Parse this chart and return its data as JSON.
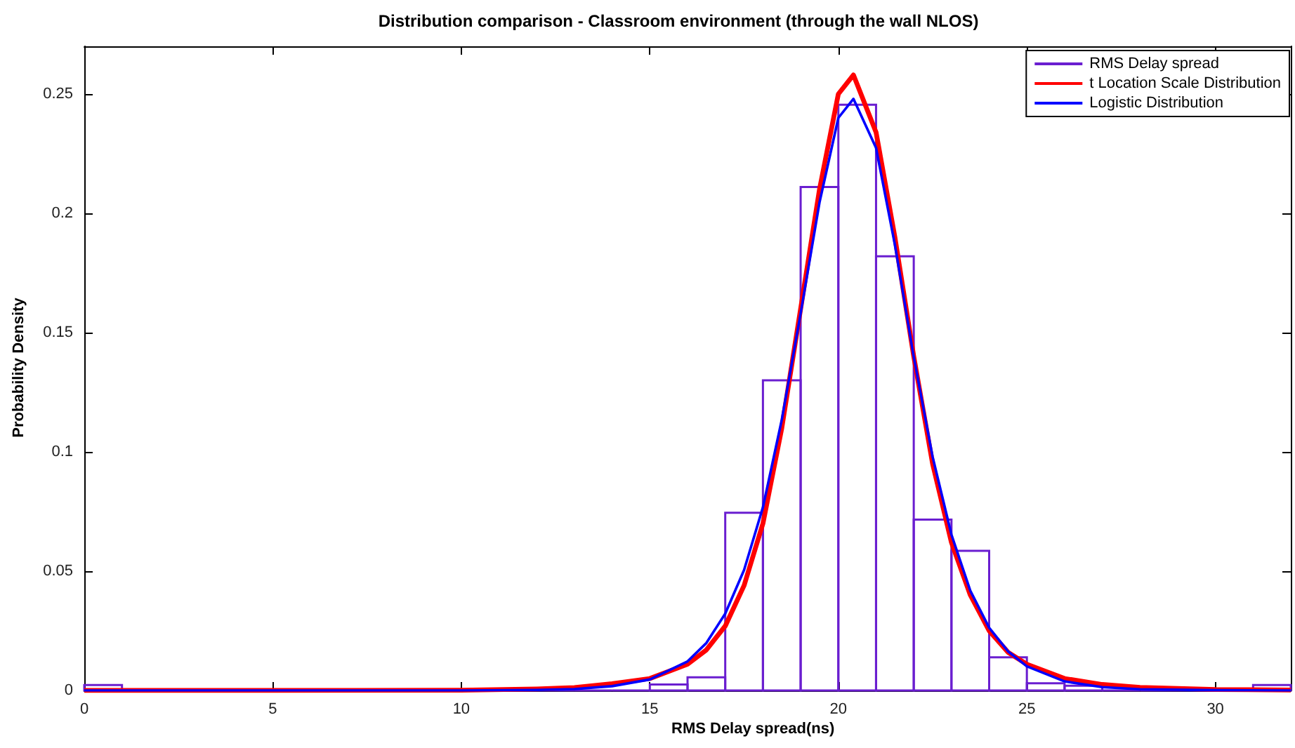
{
  "chart_data": {
    "type": "histogram",
    "title": "Distribution comparison - Classroom environment (through the wall NLOS)",
    "xlabel": "RMS Delay spread(ns)",
    "ylabel": "Probability Density",
    "xlim": [
      0,
      32
    ],
    "ylim": [
      0,
      0.27
    ],
    "xticks": [
      0,
      5,
      10,
      15,
      20,
      25,
      30
    ],
    "yticks": [
      0,
      0.05,
      0.1,
      0.15,
      0.2,
      0.25
    ],
    "grid": false,
    "legend": "top right",
    "series": [
      {
        "name": "RMS Delay spread",
        "type": "histogram",
        "color": "#6a1ed0",
        "bins": [
          0,
          1,
          2,
          3,
          4,
          5,
          6,
          7,
          8,
          9,
          10,
          11,
          12,
          13,
          14,
          15,
          16,
          17,
          18,
          19,
          20,
          21,
          22,
          23,
          24,
          25,
          26,
          27,
          28,
          29,
          30,
          31,
          32
        ],
        "values": [
          0.0023,
          0,
          0,
          0,
          0,
          0,
          0,
          0,
          0,
          0,
          0,
          0,
          0,
          0,
          0,
          0.0025,
          0.0055,
          0.0745,
          0.13,
          0.211,
          0.2455,
          0.182,
          0.0716,
          0.0585,
          0.0139,
          0.003,
          0.002,
          0,
          0,
          0,
          0,
          0.0023
        ]
      },
      {
        "name": "t Location Scale Distribution",
        "type": "line",
        "color": "#ff0000",
        "x": [
          0,
          5,
          10,
          12,
          13,
          14,
          15,
          16,
          16.5,
          17,
          17.5,
          18,
          18.5,
          19,
          19.5,
          20,
          20.4,
          21,
          21.5,
          22,
          22.5,
          23,
          23.5,
          24,
          24.5,
          25,
          26,
          27,
          28,
          30,
          32
        ],
        "values": [
          0,
          0,
          0.0001,
          0.0006,
          0.0012,
          0.0028,
          0.005,
          0.011,
          0.017,
          0.027,
          0.044,
          0.07,
          0.11,
          0.16,
          0.21,
          0.25,
          0.258,
          0.234,
          0.19,
          0.14,
          0.095,
          0.062,
          0.04,
          0.025,
          0.016,
          0.011,
          0.005,
          0.0025,
          0.0013,
          0.0004,
          0.0002
        ]
      },
      {
        "name": "Logistic Distribution",
        "type": "line",
        "color": "#0000ff",
        "x": [
          0,
          5,
          10,
          12,
          13,
          14,
          15,
          16,
          16.5,
          17,
          17.5,
          18,
          18.5,
          19,
          19.5,
          20,
          20.4,
          21,
          21.5,
          22,
          22.5,
          23,
          23.5,
          24,
          24.5,
          25,
          26,
          27,
          28,
          30,
          32
        ],
        "values": [
          0,
          0,
          0,
          0.0002,
          0.0006,
          0.0018,
          0.0046,
          0.0122,
          0.0199,
          0.0322,
          0.0505,
          0.0768,
          0.1135,
          0.158,
          0.2045,
          0.24,
          0.248,
          0.2274,
          0.1868,
          0.1398,
          0.098,
          0.0653,
          0.0418,
          0.0263,
          0.0164,
          0.0101,
          0.0038,
          0.0014,
          0.0005,
          0.0001,
          0
        ]
      }
    ]
  }
}
